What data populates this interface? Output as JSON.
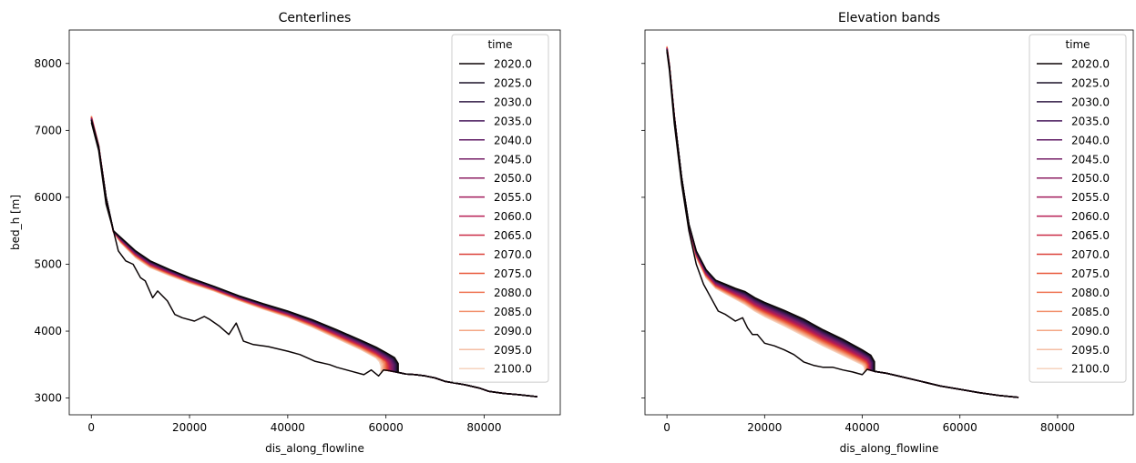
{
  "chart_data": [
    {
      "type": "line",
      "title": "Centerlines",
      "xlabel": "dis_along_flowline",
      "ylabel": "bed_h [m]",
      "xlim": [
        -4500,
        95500
      ],
      "ylim": [
        2750,
        8500
      ],
      "xticks": [
        0,
        20000,
        40000,
        60000,
        80000
      ],
      "yticks": [
        3000,
        4000,
        5000,
        6000,
        7000,
        8000
      ],
      "legend": {
        "title": "time",
        "placement": "top-right",
        "entries": [
          "2020.0",
          "2025.0",
          "2030.0",
          "2035.0",
          "2040.0",
          "2045.0",
          "2050.0",
          "2055.0",
          "2060.0",
          "2065.0",
          "2070.0",
          "2075.0",
          "2080.0",
          "2085.0",
          "2090.0",
          "2095.0",
          "2100.0"
        ]
      },
      "colors": [
        "#0b0405",
        "#1c1229",
        "#311a45",
        "#48185c",
        "#5f1a63",
        "#751e66",
        "#8c1f63",
        "#a11a5b",
        "#b71e53",
        "#cb2b47",
        "#dc4139",
        "#e8593a",
        "#ef7554",
        "#f28e6a",
        "#f4a785",
        "#f5bea3",
        "#f6d3bf"
      ],
      "bed": {
        "x": [
          0,
          1500,
          3000,
          4500,
          5500,
          7000,
          8500,
          10000,
          11000,
          12500,
          13500,
          15500,
          17000,
          18500,
          21000,
          23000,
          24000,
          26000,
          28000,
          29500,
          31000,
          33000,
          36000,
          40000,
          42500,
          45500,
          48500,
          50000,
          53000,
          55500,
          57000,
          58500,
          59500,
          60500,
          62000,
          64000,
          66000,
          68000,
          70000,
          72000,
          76000,
          79000,
          81000,
          84000,
          87000,
          90800
        ],
        "y": [
          7120,
          6700,
          5900,
          5500,
          5200,
          5050,
          5000,
          4800,
          4750,
          4500,
          4600,
          4450,
          4250,
          4200,
          4150,
          4220,
          4180,
          4080,
          3950,
          4120,
          3850,
          3800,
          3770,
          3700,
          3650,
          3550,
          3500,
          3460,
          3400,
          3350,
          3420,
          3330,
          3420,
          3410,
          3390,
          3360,
          3350,
          3330,
          3300,
          3250,
          3200,
          3150,
          3100,
          3070,
          3050,
          3020
        ]
      },
      "surface": {
        "x": [
          0,
          1500,
          3000,
          4500,
          6000,
          9000,
          12000,
          16000,
          20000,
          25000,
          30000,
          35000,
          40000,
          45000,
          50000,
          55000,
          58000,
          60000
        ],
        "y_2020": [
          7150,
          6750,
          6000,
          5500,
          5400,
          5200,
          5050,
          4920,
          4800,
          4670,
          4530,
          4410,
          4300,
          4170,
          4020,
          3860,
          3760,
          3680
        ],
        "y_2100": [
          7220,
          6780,
          6000,
          5480,
          5320,
          5100,
          4950,
          4830,
          4720,
          4600,
          4460,
          4330,
          4210,
          4060,
          3890,
          3720,
          3600,
          3480
        ]
      },
      "terminus_x_2020": 62500,
      "terminus_x_2100": 59000
    },
    {
      "type": "line",
      "title": "Elevation bands",
      "xlabel": "dis_along_flowline",
      "ylabel": "",
      "xlim": [
        -4500,
        95500
      ],
      "ylim": [
        2750,
        8500
      ],
      "xticks": [
        0,
        20000,
        40000,
        60000,
        80000
      ],
      "yticks": [
        3000,
        4000,
        5000,
        6000,
        7000,
        8000
      ],
      "legend": {
        "title": "time",
        "placement": "top-right",
        "entries": [
          "2020.0",
          "2025.0",
          "2030.0",
          "2035.0",
          "2040.0",
          "2045.0",
          "2050.0",
          "2055.0",
          "2060.0",
          "2065.0",
          "2070.0",
          "2075.0",
          "2080.0",
          "2085.0",
          "2090.0",
          "2095.0",
          "2100.0"
        ]
      },
      "colors": [
        "#0b0405",
        "#1c1229",
        "#311a45",
        "#48185c",
        "#5f1a63",
        "#751e66",
        "#8c1f63",
        "#a11a5b",
        "#b71e53",
        "#cb2b47",
        "#dc4139",
        "#e8593a",
        "#ef7554",
        "#f28e6a",
        "#f4a785",
        "#f5bea3",
        "#f6d3bf"
      ],
      "bed": {
        "x": [
          0,
          500,
          1500,
          3000,
          4500,
          6000,
          7500,
          9000,
          10500,
          12000,
          14000,
          15500,
          16500,
          17500,
          18500,
          20000,
          22000,
          24000,
          26000,
          28000,
          30000,
          32000,
          34000,
          36000,
          38000,
          40000,
          41000,
          42500,
          45000,
          48000,
          52000,
          56000,
          60000,
          64000,
          68000,
          72000
        ],
        "y": [
          8180,
          7900,
          7100,
          6200,
          5500,
          5000,
          4700,
          4500,
          4300,
          4250,
          4150,
          4200,
          4050,
          3950,
          3950,
          3820,
          3780,
          3720,
          3650,
          3540,
          3490,
          3460,
          3460,
          3420,
          3390,
          3350,
          3430,
          3400,
          3370,
          3320,
          3250,
          3180,
          3130,
          3080,
          3040,
          3010
        ]
      },
      "surface": {
        "x": [
          0,
          500,
          1500,
          3000,
          4500,
          6000,
          8000,
          10000,
          12000,
          14000,
          16000,
          18000,
          20000,
          24000,
          28000,
          32000,
          36000,
          38000,
          40000
        ],
        "y_2020": [
          8200,
          7950,
          7200,
          6300,
          5600,
          5200,
          4920,
          4760,
          4700,
          4640,
          4590,
          4500,
          4430,
          4310,
          4180,
          4020,
          3880,
          3800,
          3720
        ],
        "y_2100": [
          8260,
          7980,
          7220,
          6280,
          5540,
          5100,
          4800,
          4640,
          4560,
          4480,
          4400,
          4300,
          4220,
          4080,
          3930,
          3780,
          3640,
          3570,
          3500
        ]
      },
      "terminus_x_2020": 42500,
      "terminus_x_2100": 40500
    }
  ]
}
